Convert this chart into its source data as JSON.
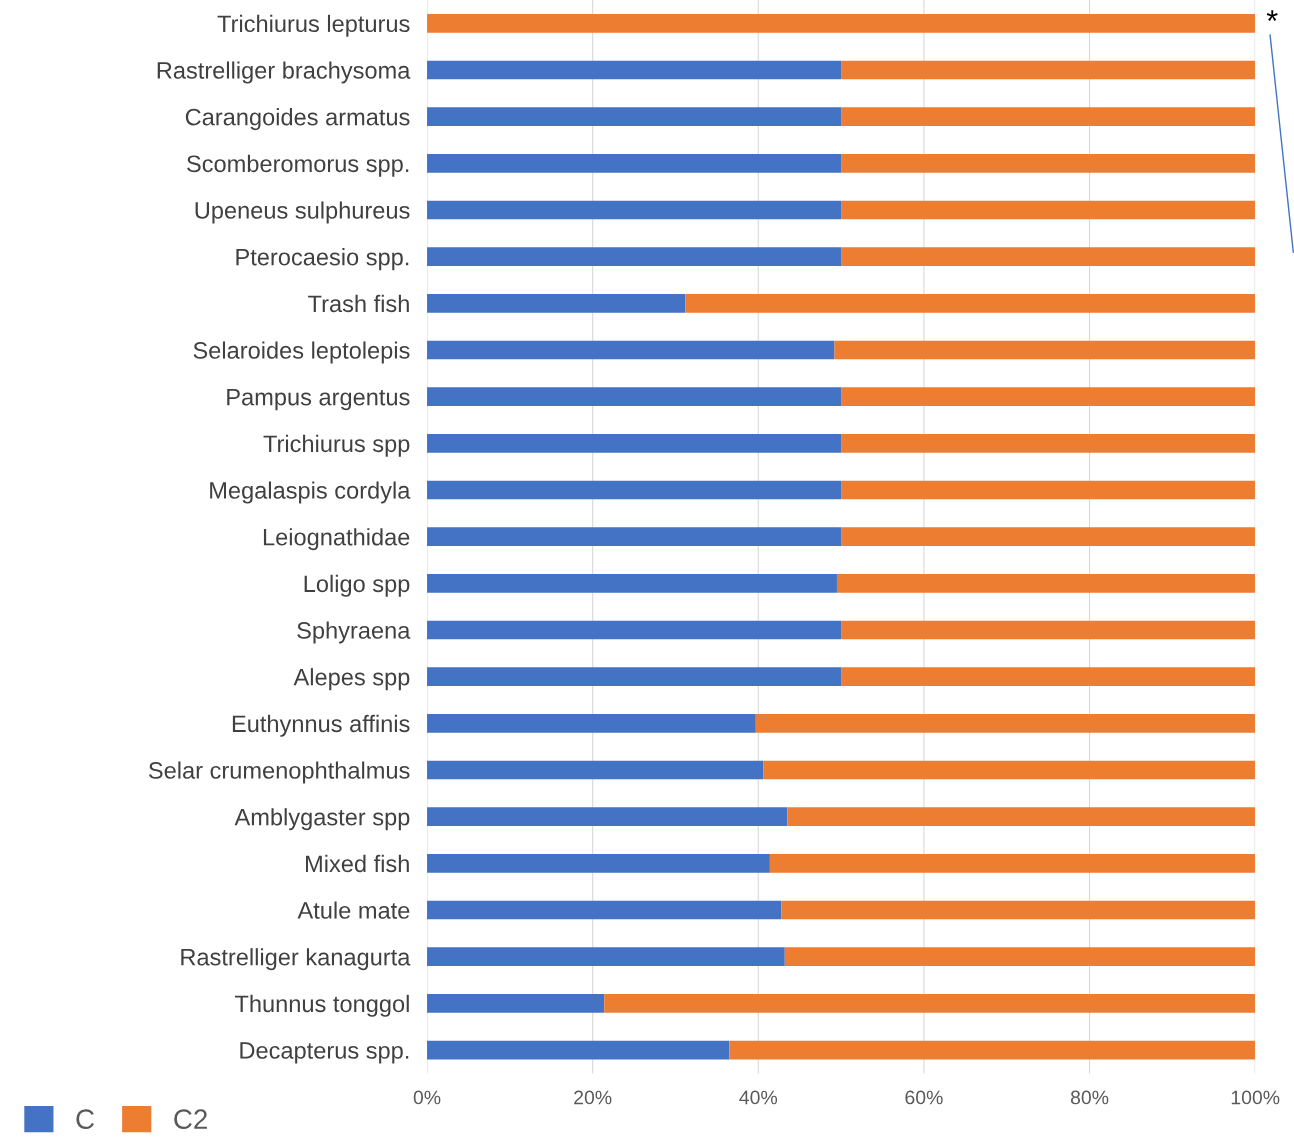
{
  "chart_data": {
    "type": "bar",
    "orientation": "horizontal",
    "stacked": true,
    "categories": [
      "Trichiurus lepturus",
      "Rastrelliger brachysoma",
      "Carangoides armatus",
      "Scomberomorus spp.",
      "Upeneus sulphureus",
      "Pterocaesio spp.",
      "Trash fish",
      "Selaroides leptolepis",
      "Pampus argentus",
      "Trichiurus spp",
      "Megalaspis cordyla",
      "Leiognathidae",
      "Loligo spp",
      "Sphyraena",
      "Alepes spp",
      "Euthynnus affinis",
      "Selar crumenophthalmus",
      "Amblygaster spp",
      "Mixed fish",
      "Atule mate",
      "Rastrelliger kanagurta",
      "Thunnus tonggol",
      "Decapterus spp."
    ],
    "series": [
      {
        "name": "C",
        "color": "#4472c4",
        "values": [
          0,
          50,
          50,
          50,
          50,
          50,
          31.2,
          49.2,
          50,
          50,
          50,
          50,
          49.5,
          50,
          50,
          39.7,
          40.6,
          43.5,
          41.4,
          42.8,
          43.2,
          21.4,
          36.5
        ]
      },
      {
        "name": "C2",
        "color": "#ed7d31",
        "values": [
          100,
          50,
          50,
          50,
          50,
          50,
          68.8,
          50.8,
          50,
          50,
          50,
          50,
          50.5,
          50,
          50,
          60.3,
          59.4,
          56.5,
          58.6,
          57.2,
          56.8,
          78.6,
          63.5
        ]
      }
    ],
    "xlim": [
      0,
      100
    ],
    "xticks": [
      {
        "value": 0,
        "label": "0%"
      },
      {
        "value": 20,
        "label": "20%"
      },
      {
        "value": 40,
        "label": "40%"
      },
      {
        "value": 60,
        "label": "60%"
      },
      {
        "value": 80,
        "label": "80%"
      },
      {
        "value": 100,
        "label": "100%"
      }
    ],
    "grid": "x",
    "legend": "bottom left",
    "annotations": [
      {
        "text": "*",
        "x": 100,
        "y": "Trichiurus lepturus"
      }
    ]
  }
}
